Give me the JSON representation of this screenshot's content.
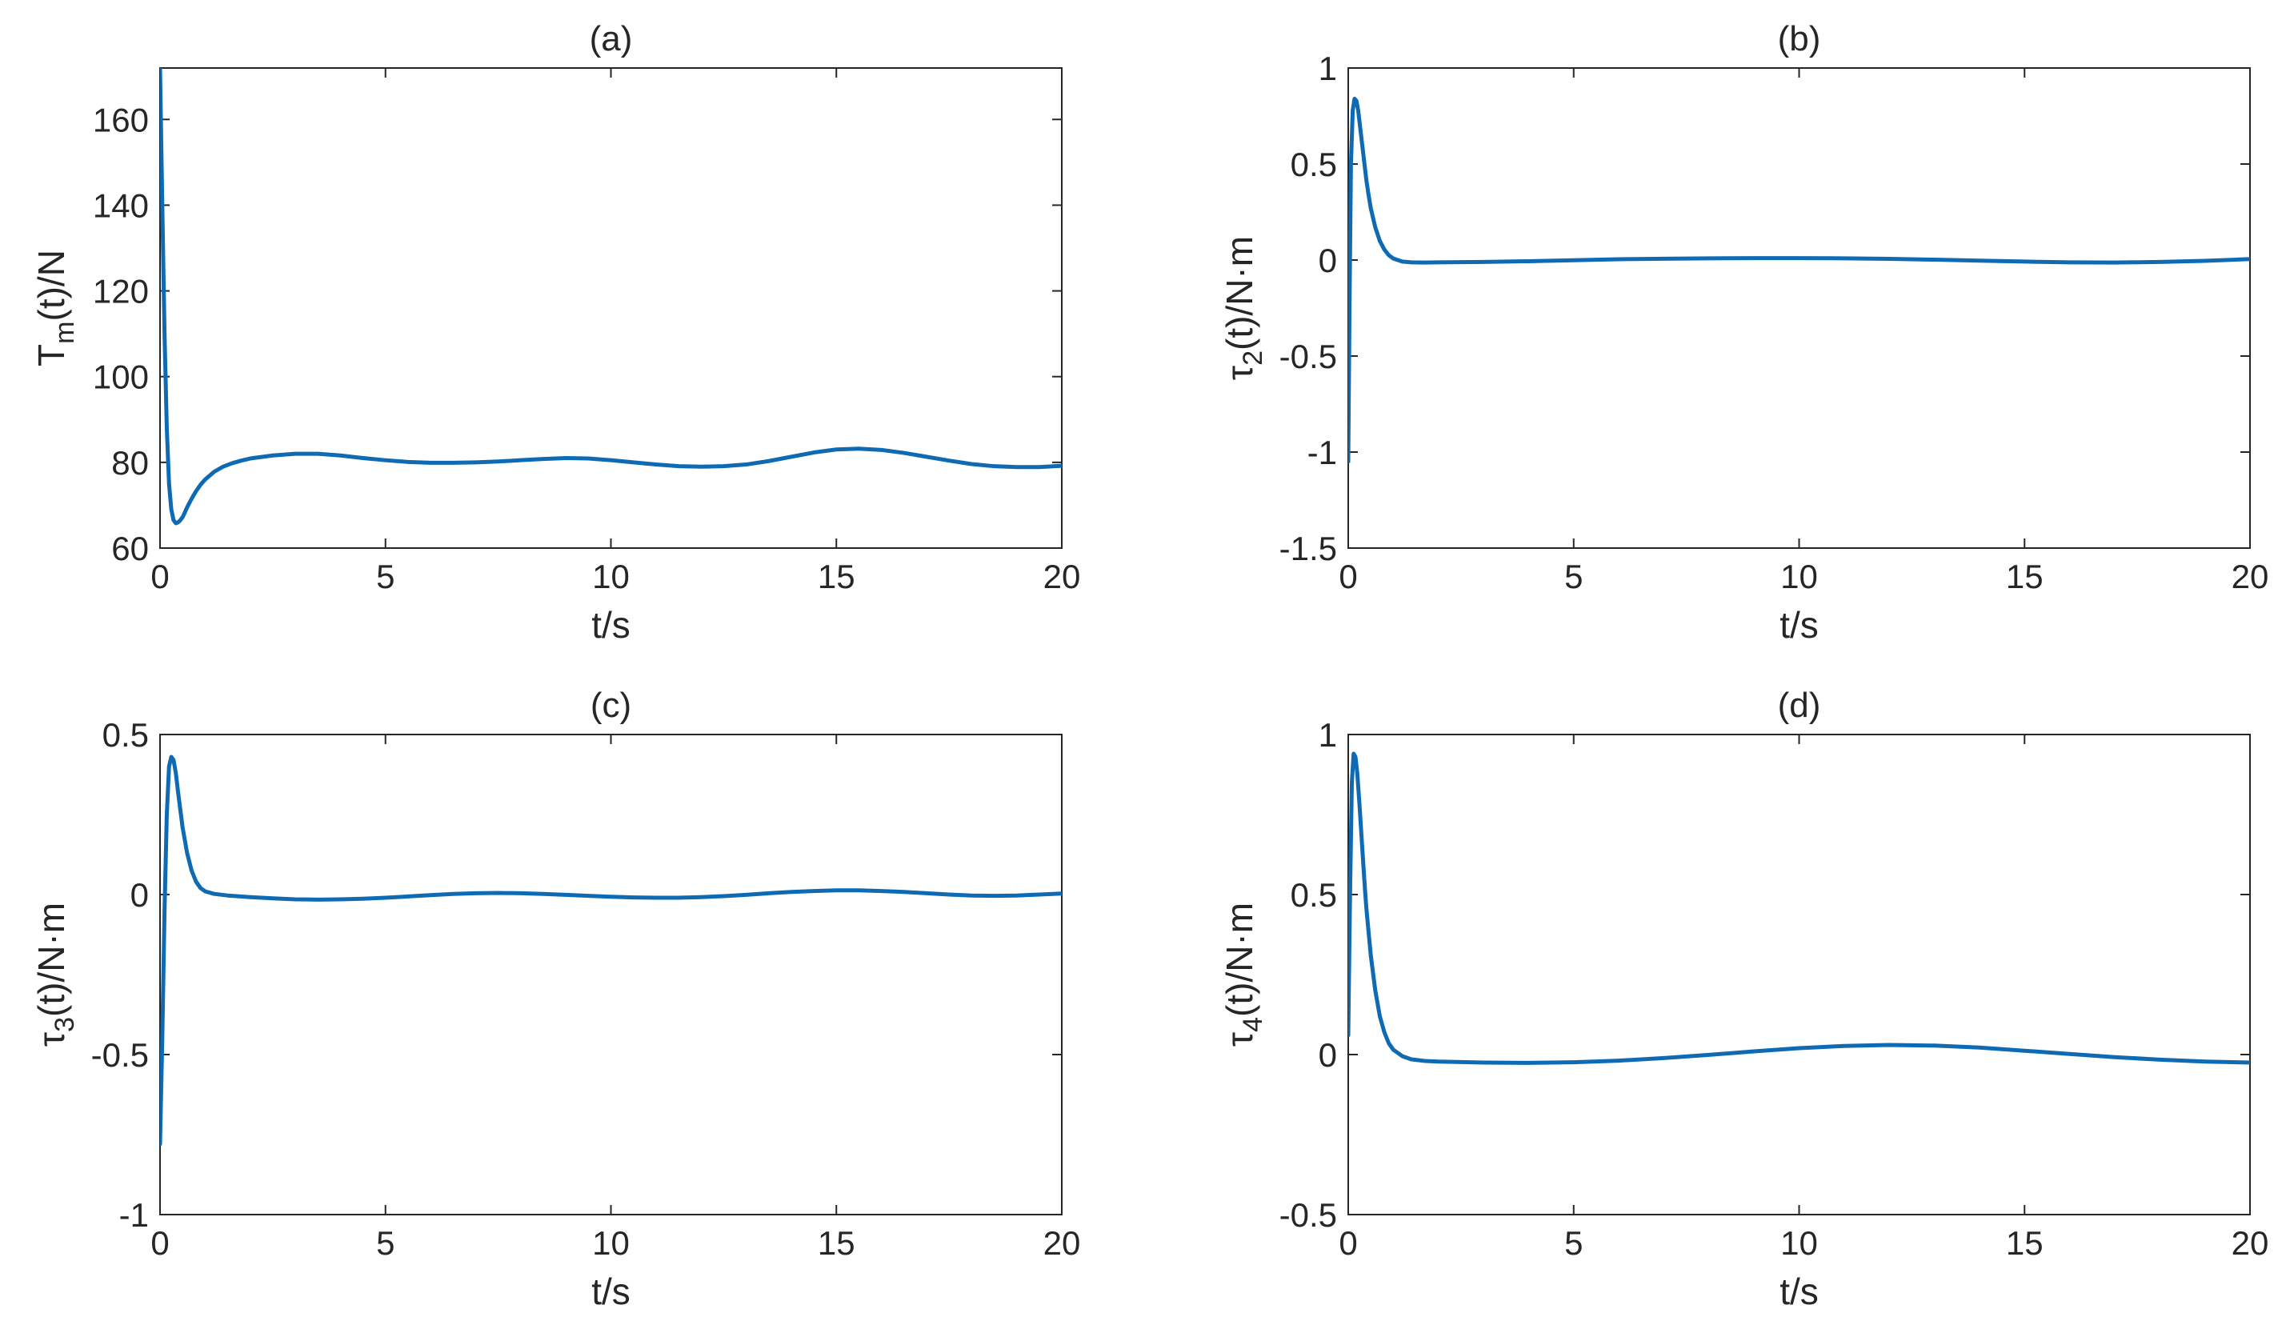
{
  "figure": {
    "line_color": "#0f6ab4",
    "axis_color": "#262626"
  },
  "chart_data": [
    {
      "id": "a",
      "type": "line",
      "title": "(a)",
      "xlabel": "t/s",
      "ylabel": {
        "main": "T",
        "sub": "m",
        "rest": "(t)/N"
      },
      "xlim": [
        0,
        20
      ],
      "ylim": [
        60,
        172
      ],
      "xticks": [
        "0",
        "5",
        "10",
        "15",
        "20"
      ],
      "yticks": [
        "60",
        "80",
        "100",
        "120",
        "140",
        "160"
      ],
      "series": [
        {
          "name": "T_m(t)",
          "x": [
            0,
            0.05,
            0.1,
            0.15,
            0.2,
            0.25,
            0.3,
            0.35,
            0.4,
            0.45,
            0.5,
            0.55,
            0.6,
            0.7,
            0.8,
            0.9,
            1.0,
            1.2,
            1.4,
            1.6,
            1.8,
            2.0,
            2.5,
            3.0,
            3.5,
            4.0,
            4.5,
            5.0,
            5.5,
            6.0,
            6.5,
            7.0,
            7.5,
            8.0,
            8.5,
            9.0,
            9.5,
            10.0,
            10.5,
            11.0,
            11.5,
            12.0,
            12.5,
            13.0,
            13.5,
            14.0,
            14.5,
            15.0,
            15.5,
            16.0,
            16.5,
            17.0,
            17.5,
            18.0,
            18.5,
            19.0,
            19.5,
            20.0
          ],
          "y": [
            172,
            140,
            110,
            88,
            75,
            69,
            66.5,
            65.8,
            66,
            66.5,
            67.2,
            68.3,
            69.5,
            71.5,
            73.3,
            74.8,
            76.0,
            77.8,
            79.0,
            79.8,
            80.4,
            80.9,
            81.6,
            82.0,
            82.0,
            81.6,
            81.0,
            80.5,
            80.1,
            79.9,
            79.9,
            80.0,
            80.2,
            80.5,
            80.8,
            81.0,
            80.9,
            80.5,
            80.0,
            79.5,
            79.1,
            79.0,
            79.1,
            79.5,
            80.3,
            81.3,
            82.3,
            83.0,
            83.2,
            82.9,
            82.2,
            81.3,
            80.4,
            79.6,
            79.1,
            78.9,
            78.9,
            79.2
          ]
        }
      ]
    },
    {
      "id": "b",
      "type": "line",
      "title": "(b)",
      "xlabel": "t/s",
      "ylabel": {
        "main": "τ",
        "sub": "2",
        "rest": "(t)/N·m"
      },
      "xlim": [
        0,
        20
      ],
      "ylim": [
        -1.5,
        1
      ],
      "xticks": [
        "0",
        "5",
        "10",
        "15",
        "20"
      ],
      "yticks": [
        "-1.5",
        "-1",
        "-0.5",
        "0",
        "0.5",
        "1"
      ],
      "series": [
        {
          "name": "τ_2(t)",
          "x": [
            0,
            0.03,
            0.06,
            0.1,
            0.14,
            0.18,
            0.22,
            0.26,
            0.3,
            0.35,
            0.4,
            0.45,
            0.5,
            0.6,
            0.7,
            0.8,
            0.9,
            1.0,
            1.2,
            1.4,
            1.7,
            2.0,
            3.0,
            4.0,
            5.0,
            6.0,
            7.0,
            8.0,
            9.0,
            10.0,
            11.0,
            12.0,
            13.0,
            14.0,
            15.0,
            16.0,
            17.0,
            18.0,
            19.0,
            20.0
          ],
          "y": [
            -1.05,
            -0.2,
            0.5,
            0.78,
            0.84,
            0.83,
            0.78,
            0.7,
            0.62,
            0.52,
            0.42,
            0.34,
            0.27,
            0.17,
            0.1,
            0.055,
            0.025,
            0.008,
            -0.008,
            -0.012,
            -0.013,
            -0.012,
            -0.01,
            -0.006,
            -0.001,
            0.004,
            0.007,
            0.009,
            0.01,
            0.01,
            0.009,
            0.006,
            0.002,
            -0.003,
            -0.008,
            -0.012,
            -0.013,
            -0.01,
            -0.004,
            0.005
          ]
        }
      ]
    },
    {
      "id": "c",
      "type": "line",
      "title": "(c)",
      "xlabel": "t/s",
      "ylabel": {
        "main": "τ",
        "sub": "3",
        "rest": "(t)/N·m"
      },
      "xlim": [
        0,
        20
      ],
      "ylim": [
        -1,
        0.5
      ],
      "xticks": [
        "0",
        "5",
        "10",
        "15",
        "20"
      ],
      "yticks": [
        "-1",
        "-0.5",
        "0",
        "0.5"
      ],
      "series": [
        {
          "name": "τ_3(t)",
          "x": [
            0,
            0.05,
            0.1,
            0.15,
            0.2,
            0.25,
            0.3,
            0.35,
            0.4,
            0.5,
            0.6,
            0.7,
            0.8,
            0.9,
            1.0,
            1.2,
            1.5,
            2.0,
            2.5,
            3.0,
            3.5,
            4.0,
            4.5,
            5.0,
            5.5,
            6.0,
            6.5,
            7.0,
            7.5,
            8.0,
            8.5,
            9.0,
            9.5,
            10.0,
            10.5,
            11.0,
            11.5,
            12.0,
            12.5,
            13.0,
            13.5,
            14.0,
            14.5,
            15.0,
            15.5,
            16.0,
            16.5,
            17.0,
            17.5,
            18.0,
            18.5,
            19.0,
            19.5,
            20.0
          ],
          "y": [
            -0.78,
            -0.45,
            -0.05,
            0.25,
            0.4,
            0.43,
            0.42,
            0.38,
            0.32,
            0.21,
            0.13,
            0.075,
            0.04,
            0.02,
            0.01,
            0.002,
            -0.003,
            -0.008,
            -0.012,
            -0.015,
            -0.016,
            -0.015,
            -0.013,
            -0.01,
            -0.006,
            -0.002,
            0.002,
            0.004,
            0.005,
            0.004,
            0.002,
            -0.001,
            -0.004,
            -0.007,
            -0.009,
            -0.01,
            -0.01,
            -0.008,
            -0.005,
            -0.001,
            0.004,
            0.008,
            0.011,
            0.013,
            0.013,
            0.011,
            0.008,
            0.004,
            0.0,
            -0.003,
            -0.004,
            -0.003,
            0.0,
            0.003
          ]
        }
      ]
    },
    {
      "id": "d",
      "type": "line",
      "title": "(d)",
      "xlabel": "t/s",
      "ylabel": {
        "main": "τ",
        "sub": "4",
        "rest": "(t)/N·m"
      },
      "xlim": [
        0,
        20
      ],
      "ylim": [
        -0.5,
        1
      ],
      "xticks": [
        "0",
        "5",
        "10",
        "15",
        "20"
      ],
      "yticks": [
        "-0.5",
        "0",
        "0.5",
        "1"
      ],
      "series": [
        {
          "name": "τ_4(t)",
          "x": [
            0,
            0.04,
            0.08,
            0.12,
            0.16,
            0.2,
            0.25,
            0.3,
            0.35,
            0.4,
            0.5,
            0.6,
            0.7,
            0.8,
            0.9,
            1.0,
            1.2,
            1.4,
            1.7,
            2.0,
            3.0,
            4.0,
            5.0,
            6.0,
            7.0,
            8.0,
            9.0,
            10.0,
            11.0,
            12.0,
            13.0,
            14.0,
            15.0,
            16.0,
            17.0,
            18.0,
            19.0,
            20.0
          ],
          "y": [
            0.06,
            0.5,
            0.85,
            0.94,
            0.93,
            0.88,
            0.78,
            0.67,
            0.56,
            0.46,
            0.31,
            0.2,
            0.12,
            0.07,
            0.035,
            0.015,
            -0.005,
            -0.015,
            -0.02,
            -0.022,
            -0.025,
            -0.026,
            -0.024,
            -0.019,
            -0.011,
            -0.001,
            0.01,
            0.02,
            0.027,
            0.03,
            0.028,
            0.022,
            0.012,
            0.002,
            -0.008,
            -0.016,
            -0.022,
            -0.025
          ]
        }
      ]
    }
  ]
}
